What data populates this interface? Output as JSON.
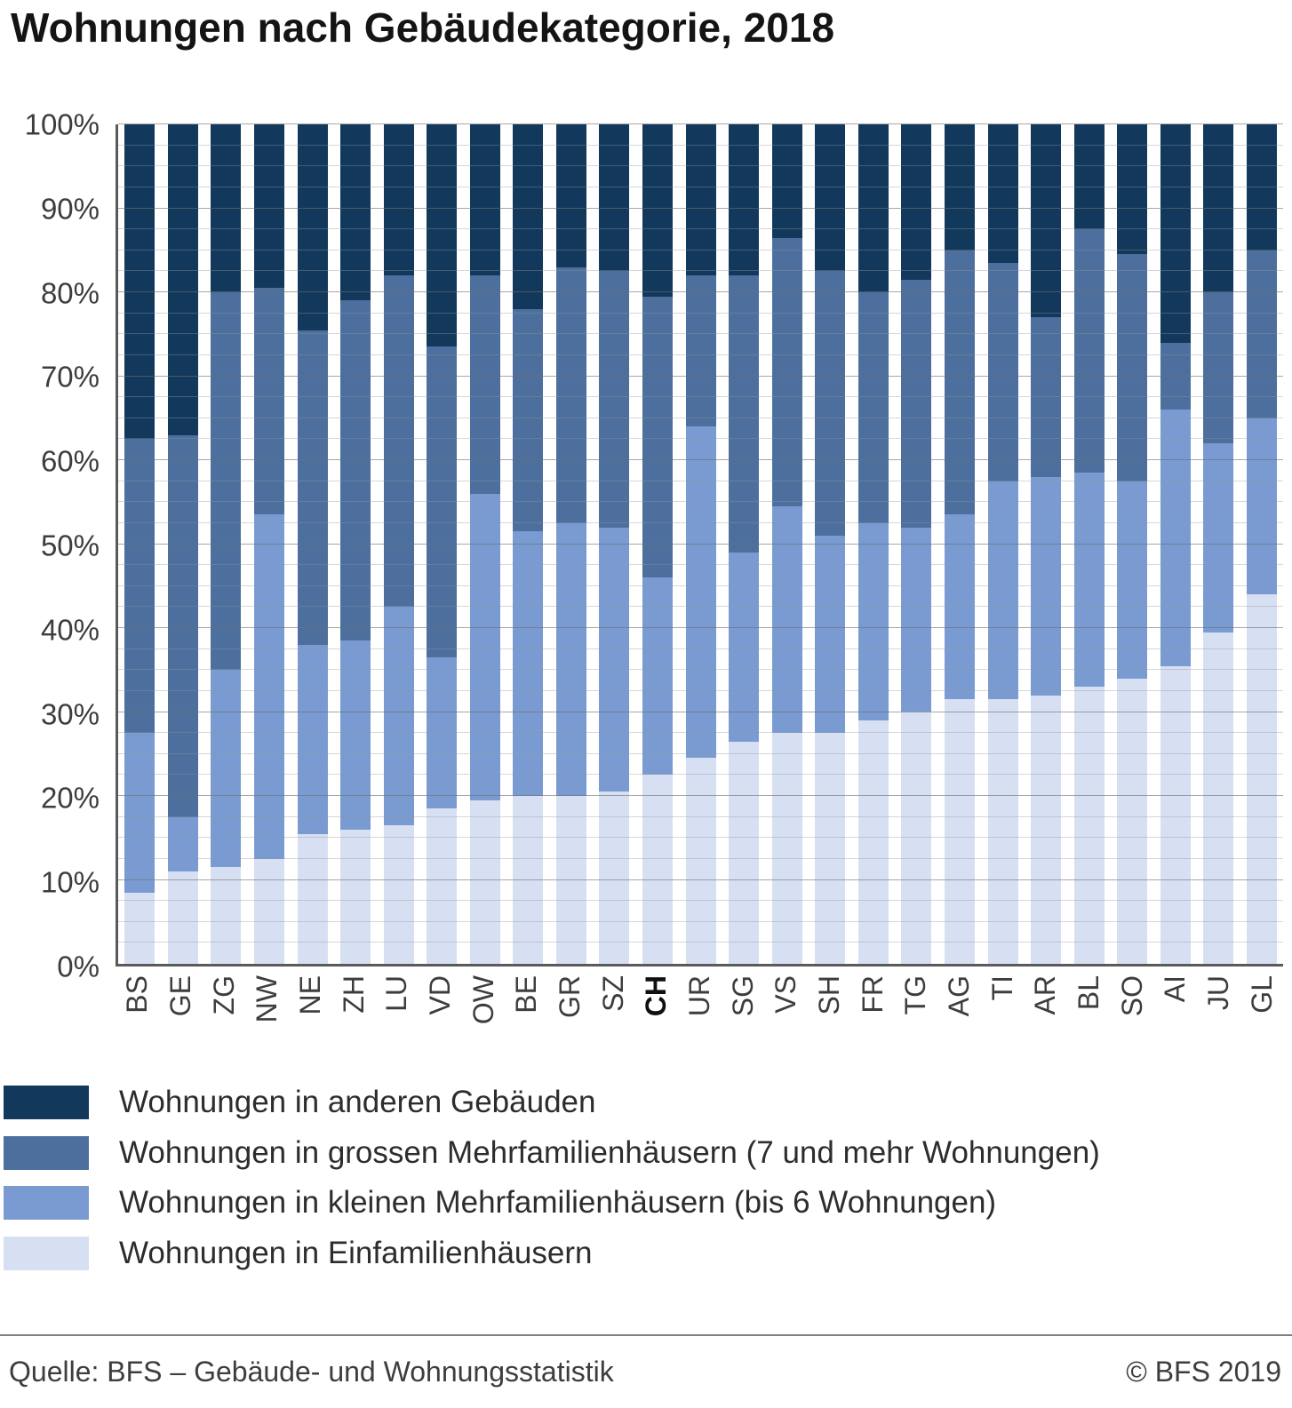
{
  "title": "Wohnungen nach Gebäudekategorie, 2018",
  "chart_data": {
    "type": "bar",
    "stacked": true,
    "percent": true,
    "title": "Wohnungen nach Gebäudekategorie, 2018",
    "ylim": [
      0,
      100
    ],
    "yticks": [
      "0%",
      "10%",
      "20%",
      "30%",
      "40%",
      "50%",
      "60%",
      "70%",
      "80%",
      "90%",
      "100%"
    ],
    "grid": "minor horizontal every 2.5%, major every 10%",
    "legend_position": "below",
    "emphasized_category": "CH",
    "categories": [
      "BS",
      "GE",
      "ZG",
      "NW",
      "NE",
      "ZH",
      "LU",
      "VD",
      "OW",
      "BE",
      "GR",
      "SZ",
      "CH",
      "UR",
      "SG",
      "VS",
      "SH",
      "FR",
      "TG",
      "AG",
      "TI",
      "AR",
      "BL",
      "SO",
      "AI",
      "JU",
      "GL"
    ],
    "series": [
      {
        "name": "Wohnungen in Einfamilienhäusern",
        "color": "#d7e0f2",
        "values": [
          8.5,
          11,
          11.5,
          12.5,
          15.5,
          16,
          16.5,
          18.5,
          19.5,
          20,
          20,
          20.5,
          22.5,
          24.5,
          26.5,
          27.5,
          27.5,
          29,
          30,
          31.5,
          31.5,
          32,
          33,
          34,
          35.5,
          39.5,
          44
        ]
      },
      {
        "name": "Wohnungen in kleinen Mehrfamilienhäusern (bis 6 Wohnungen)",
        "color": "#7a9bd1",
        "values": [
          19,
          6.5,
          23.5,
          41,
          22.5,
          22.5,
          26,
          18,
          36.5,
          31.5,
          32.5,
          31.5,
          23.5,
          39.5,
          22.5,
          27,
          23.5,
          23.5,
          22,
          22,
          26,
          26,
          25.5,
          23.5,
          30.5,
          22.5,
          21
        ]
      },
      {
        "name": "Wohnungen in grossen Mehrfamilienhäusern (7 und mehr Wohnungen)",
        "color": "#4d6f9e",
        "values": [
          35,
          45.5,
          45,
          27,
          37.5,
          40.5,
          39.5,
          37,
          26,
          26.5,
          30.5,
          30.5,
          33.5,
          18,
          33,
          32,
          31.5,
          27.5,
          29.5,
          31.5,
          26,
          19,
          29,
          27,
          8,
          18,
          20
        ]
      },
      {
        "name": "Wohnungen in anderen Gebäuden",
        "color": "#12395c",
        "values": [
          37.5,
          37,
          20,
          19.5,
          24.5,
          21,
          18,
          26.5,
          18,
          22,
          17,
          17.5,
          20.5,
          18,
          18,
          13.5,
          17.5,
          20,
          18.5,
          15,
          16.5,
          23,
          12.5,
          15.5,
          26,
          20,
          15
        ]
      }
    ]
  },
  "footer": {
    "source": "Quelle: BFS – Gebäude- und Wohnungsstatistik",
    "copyright": "© BFS 2019"
  }
}
